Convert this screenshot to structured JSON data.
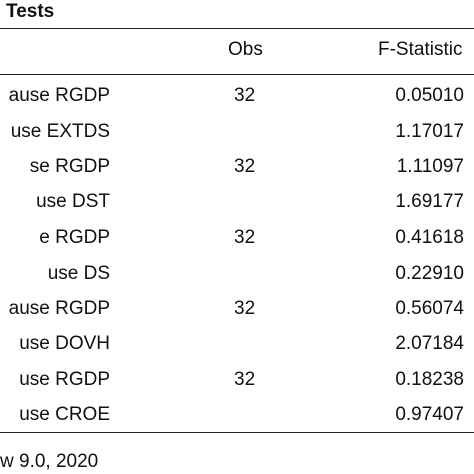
{
  "table": {
    "title": "Tests",
    "headers": {
      "obs": "Obs",
      "fstat": "F-Statistic"
    },
    "rows": [
      {
        "label": "ause RGDP",
        "obs": "32",
        "fstat": "0.05010"
      },
      {
        "label": "use EXTDS",
        "obs": "",
        "fstat": "1.17017"
      },
      {
        "label": "se RGDP",
        "obs": "32",
        "fstat": "1.11097"
      },
      {
        "label": "use DST",
        "obs": "",
        "fstat": "1.69177"
      },
      {
        "label": "e RGDP",
        "obs": "32",
        "fstat": "0.41618"
      },
      {
        "label": "use DS",
        "obs": "",
        "fstat": "0.22910"
      },
      {
        "label": "ause RGDP",
        "obs": "32",
        "fstat": "0.56074"
      },
      {
        "label": "use DOVH",
        "obs": "",
        "fstat": "2.07184"
      },
      {
        "label": "use RGDP",
        "obs": "32",
        "fstat": "0.18238"
      },
      {
        "label": "use CROE",
        "obs": "",
        "fstat": "0.97407"
      }
    ],
    "source": "w 9.0, 2020"
  }
}
